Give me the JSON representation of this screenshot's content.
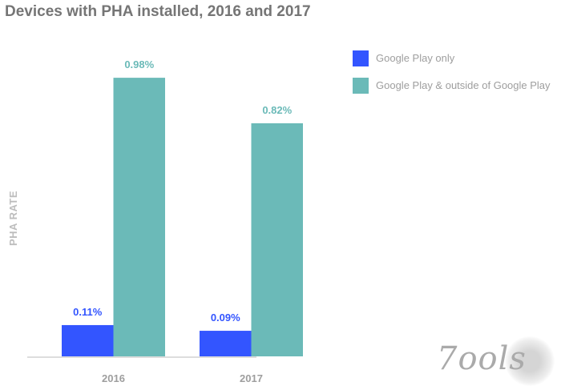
{
  "chart_data": {
    "type": "bar",
    "title": "Devices with PHA installed, 2016 and 2017",
    "xlabel": "",
    "ylabel": "PHA RATE",
    "categories": [
      "2016",
      "2017"
    ],
    "series": [
      {
        "name": "Google Play only",
        "values": [
          0.11,
          0.09
        ],
        "labels": [
          "0.11%",
          "0.09%"
        ],
        "color": "#3355ff"
      },
      {
        "name": "Google Play & outside of Google Play",
        "values": [
          0.98,
          0.82
        ],
        "labels": [
          "0.98%",
          "0.82%"
        ],
        "color": "#6bbab8"
      }
    ],
    "ylim": [
      0,
      1.0
    ],
    "grid": false,
    "legend": "top-right"
  },
  "watermark": "7ools"
}
